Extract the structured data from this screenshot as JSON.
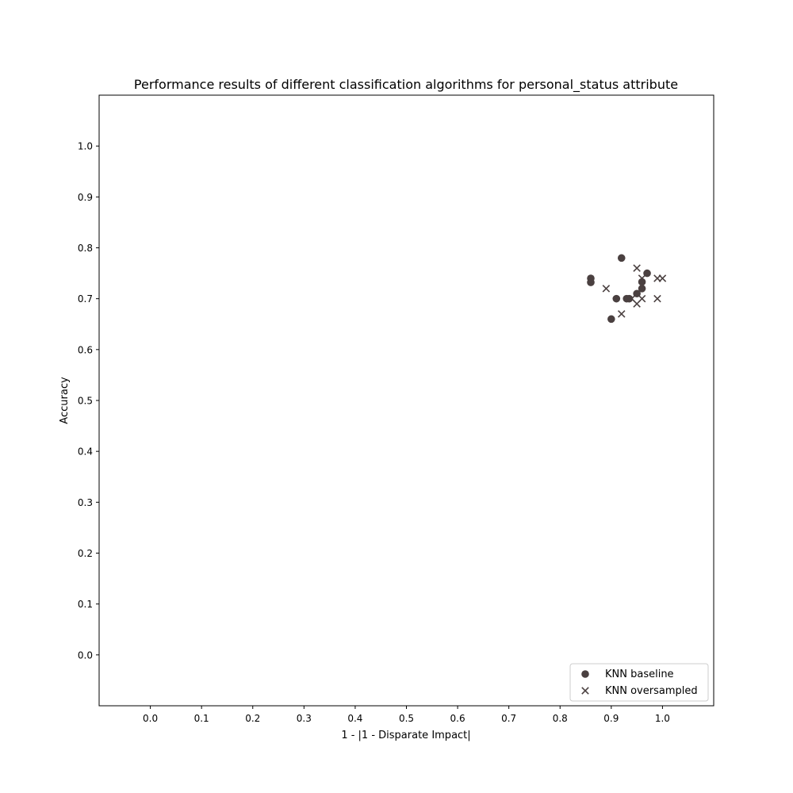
{
  "chart_data": {
    "type": "scatter",
    "title": "Performance results of different classification algorithms for personal_status attribute",
    "xlabel": "1 - |1 - Disparate Impact|",
    "ylabel": "Accuracy",
    "xlim": [
      -0.1,
      1.1
    ],
    "ylim": [
      -0.1,
      1.1
    ],
    "xticks": [
      0.0,
      0.1,
      0.2,
      0.3,
      0.4,
      0.5,
      0.6,
      0.7,
      0.8,
      0.9,
      1.0
    ],
    "yticks": [
      0.0,
      0.1,
      0.2,
      0.3,
      0.4,
      0.5,
      0.6,
      0.7,
      0.8,
      0.9,
      1.0
    ],
    "xtick_labels": [
      "0.0",
      "0.1",
      "0.2",
      "0.3",
      "0.4",
      "0.5",
      "0.6",
      "0.7",
      "0.8",
      "0.9",
      "1.0"
    ],
    "ytick_labels": [
      "0.0",
      "0.1",
      "0.2",
      "0.3",
      "0.4",
      "0.5",
      "0.6",
      "0.7",
      "0.8",
      "0.9",
      "1.0"
    ],
    "grid": false,
    "legend_position": "lower-right",
    "marker_color": "#4a4040",
    "series": [
      {
        "name": "KNN baseline",
        "marker": "circle",
        "points": [
          {
            "x": 0.86,
            "y": 0.74
          },
          {
            "x": 0.86,
            "y": 0.732
          },
          {
            "x": 0.92,
            "y": 0.78
          },
          {
            "x": 0.97,
            "y": 0.75
          },
          {
            "x": 0.96,
            "y": 0.733
          },
          {
            "x": 0.96,
            "y": 0.72
          },
          {
            "x": 0.95,
            "y": 0.71
          },
          {
            "x": 0.91,
            "y": 0.7
          },
          {
            "x": 0.93,
            "y": 0.7
          },
          {
            "x": 0.935,
            "y": 0.7
          },
          {
            "x": 0.9,
            "y": 0.66
          }
        ]
      },
      {
        "name": "KNN oversampled",
        "marker": "x",
        "points": [
          {
            "x": 0.95,
            "y": 0.76
          },
          {
            "x": 0.96,
            "y": 0.74
          },
          {
            "x": 0.99,
            "y": 0.74
          },
          {
            "x": 1.0,
            "y": 0.74
          },
          {
            "x": 0.89,
            "y": 0.72
          },
          {
            "x": 0.94,
            "y": 0.7
          },
          {
            "x": 0.96,
            "y": 0.7
          },
          {
            "x": 0.99,
            "y": 0.7
          },
          {
            "x": 0.95,
            "y": 0.69
          },
          {
            "x": 0.92,
            "y": 0.67
          }
        ]
      }
    ]
  }
}
